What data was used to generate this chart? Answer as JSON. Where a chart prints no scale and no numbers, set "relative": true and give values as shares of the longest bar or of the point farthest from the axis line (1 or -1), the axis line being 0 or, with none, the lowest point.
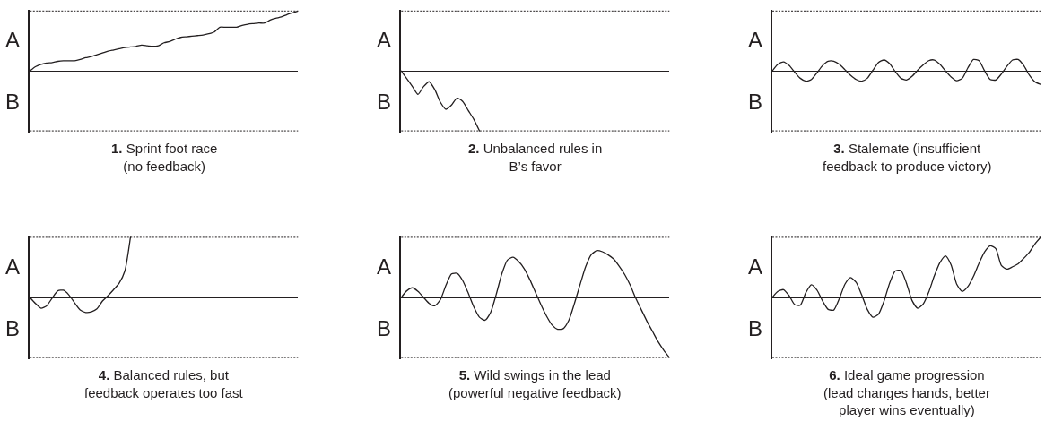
{
  "chart_data": [
    {
      "type": "line",
      "title": "1. Sprint foot race\n(no feedback)",
      "relative": true,
      "annotations": [
        "A",
        "B"
      ],
      "ref_lines": [
        {
          "axis": "y",
          "value": 1,
          "line_style": "dotted",
          "color": "#231f20"
        },
        {
          "axis": "y",
          "value": -1,
          "line_style": "dotted",
          "color": "#231f20"
        }
      ],
      "categories": [
        null,
        null,
        null,
        null,
        null,
        null,
        null,
        null,
        null,
        null,
        null,
        null,
        null,
        null,
        null,
        null,
        null,
        null,
        null,
        null,
        null,
        null,
        null,
        null,
        null,
        null,
        null,
        null,
        null,
        null,
        null,
        null,
        null,
        null,
        null,
        null,
        null,
        null,
        null,
        null,
        null,
        null,
        null,
        null,
        null,
        null,
        null,
        null,
        null
      ],
      "series": [
        {
          "color": "#231f20",
          "values": [
            0,
            0.07,
            0.11,
            0.13,
            0.14,
            0.16,
            0.17,
            0.17,
            0.17,
            0.19,
            0.22,
            0.24,
            0.27,
            0.3,
            0.33,
            0.35,
            0.37,
            0.39,
            0.4,
            0.41,
            0.43,
            0.42,
            0.41,
            0.42,
            0.47,
            0.49,
            0.53,
            0.56,
            0.57,
            0.58,
            0.59,
            0.6,
            0.62,
            0.65,
            0.73,
            0.73,
            0.73,
            0.73,
            0.76,
            0.78,
            0.79,
            0.8,
            0.8,
            0.85,
            0.88,
            0.9,
            0.94,
            0.97,
            1.0
          ]
        }
      ]
    },
    {
      "type": "line",
      "title": "2. Unbalanced rules in\nB’s favor",
      "relative": true,
      "annotations": [
        "A",
        "B"
      ],
      "ref_lines": [
        {
          "axis": "y",
          "value": 1,
          "line_style": "dotted",
          "color": "#231f20"
        },
        {
          "axis": "y",
          "value": -1,
          "line_style": "dotted",
          "color": "#231f20"
        }
      ],
      "categories": [
        null,
        null,
        null,
        null,
        null,
        null,
        null,
        null,
        null,
        null,
        null,
        null,
        null,
        null,
        null,
        null,
        null,
        null,
        null,
        null,
        null,
        null,
        null,
        null,
        null,
        null,
        null,
        null,
        null,
        null,
        null,
        null,
        null,
        null,
        null,
        null,
        null,
        null,
        null,
        null,
        null,
        null,
        null,
        null,
        null,
        null,
        null,
        null,
        null
      ],
      "series": [
        {
          "color": "#231f20",
          "values": [
            0,
            -0.13,
            -0.26,
            -0.39,
            -0.26,
            -0.18,
            -0.31,
            -0.52,
            -0.64,
            -0.57,
            -0.45,
            -0.51,
            -0.66,
            -0.81,
            -1.0,
            null,
            null,
            null,
            null,
            null,
            null,
            null,
            null,
            null,
            null,
            null,
            null,
            null,
            null,
            null,
            null,
            null,
            null,
            null,
            null,
            null,
            null,
            null,
            null,
            null,
            null,
            null,
            null,
            null,
            null,
            null,
            null,
            null,
            null
          ]
        }
      ]
    },
    {
      "type": "line",
      "title": "3. Stalemate (insufficient\nfeedback to produce victory)",
      "relative": true,
      "annotations": [
        "A",
        "B"
      ],
      "ref_lines": [
        {
          "axis": "y",
          "value": 4.5,
          "line_style": "dotted",
          "color": "#231f20"
        },
        {
          "axis": "y",
          "value": -4.5,
          "line_style": "dotted",
          "color": "#231f20"
        }
      ],
      "categories": [
        null,
        null,
        null,
        null,
        null,
        null,
        null,
        null,
        null,
        null,
        null,
        null,
        null,
        null,
        null,
        null,
        null,
        null,
        null,
        null,
        null,
        null,
        null,
        null,
        null,
        null,
        null,
        null,
        null,
        null,
        null,
        null,
        null,
        null,
        null,
        null,
        null,
        null,
        null,
        null,
        null,
        null,
        null,
        null,
        null,
        null,
        null,
        null,
        null
      ],
      "series": [
        {
          "color": "#231f20",
          "values": [
            0,
            0.5,
            0.68,
            0.41,
            -0.09,
            -0.55,
            -0.77,
            -0.64,
            -0.14,
            0.41,
            0.73,
            0.73,
            0.5,
            0.09,
            -0.32,
            -0.64,
            -0.77,
            -0.55,
            0.05,
            0.64,
            0.82,
            0.55,
            -0.05,
            -0.55,
            -0.68,
            -0.41,
            0.05,
            0.45,
            0.77,
            0.82,
            0.5,
            0.0,
            -0.45,
            -0.73,
            -0.55,
            0.23,
            0.86,
            0.77,
            0.0,
            -0.64,
            -0.68,
            -0.23,
            0.36,
            0.82,
            0.86,
            0.41,
            -0.32,
            -0.82,
            -1.0
          ]
        }
      ]
    },
    {
      "type": "line",
      "title": "4. Balanced rules, but\nfeedback operates too fast",
      "relative": true,
      "annotations": [
        "A",
        "B"
      ],
      "ref_lines": [
        {
          "axis": "y",
          "value": 1,
          "line_style": "dotted",
          "color": "#231f20"
        },
        {
          "axis": "y",
          "value": -1,
          "line_style": "dotted",
          "color": "#231f20"
        }
      ],
      "categories": [
        null,
        null,
        null,
        null,
        null,
        null,
        null,
        null,
        null,
        null,
        null,
        null,
        null,
        null,
        null,
        null,
        null,
        null,
        null,
        null,
        null,
        null,
        null,
        null,
        null,
        null,
        null,
        null,
        null,
        null,
        null,
        null,
        null,
        null,
        null,
        null,
        null,
        null,
        null,
        null,
        null,
        null,
        null,
        null,
        null,
        null,
        null,
        null,
        null
      ],
      "series": [
        {
          "color": "#231f20",
          "values": [
            0,
            -0.1,
            -0.18,
            -0.14,
            -0.01,
            0.11,
            0.12,
            0.04,
            -0.09,
            -0.21,
            -0.25,
            -0.24,
            -0.19,
            -0.06,
            0.03,
            0.13,
            0.24,
            0.44,
            1.0,
            null,
            null,
            null,
            null,
            null,
            null,
            null,
            null,
            null,
            null,
            null,
            null,
            null,
            null,
            null,
            null,
            null,
            null,
            null,
            null,
            null,
            null,
            null,
            null,
            null,
            null,
            null,
            null,
            null,
            null
          ]
        }
      ]
    },
    {
      "type": "line",
      "title": "5. Wild swings in the lead\n(powerful negative feedback)",
      "relative": true,
      "annotations": [
        "A",
        "B"
      ],
      "ref_lines": [
        {
          "axis": "y",
          "value": 1,
          "line_style": "dotted",
          "color": "#231f20"
        },
        {
          "axis": "y",
          "value": -1,
          "line_style": "dotted",
          "color": "#231f20"
        }
      ],
      "categories": [
        null,
        null,
        null,
        null,
        null,
        null,
        null,
        null,
        null,
        null,
        null,
        null,
        null,
        null,
        null,
        null,
        null,
        null,
        null,
        null,
        null,
        null,
        null,
        null,
        null,
        null,
        null,
        null,
        null,
        null,
        null,
        null,
        null,
        null,
        null,
        null,
        null,
        null,
        null,
        null,
        null,
        null,
        null,
        null,
        null,
        null,
        null,
        null,
        null
      ],
      "series": [
        {
          "color": "#231f20",
          "values": [
            0,
            0.11,
            0.16,
            0.1,
            0.0,
            -0.1,
            -0.14,
            -0.04,
            0.2,
            0.39,
            0.4,
            0.28,
            0.07,
            -0.16,
            -0.33,
            -0.38,
            -0.25,
            0.05,
            0.39,
            0.62,
            0.67,
            0.6,
            0.48,
            0.3,
            0.09,
            -0.12,
            -0.31,
            -0.46,
            -0.53,
            -0.52,
            -0.38,
            -0.1,
            0.21,
            0.51,
            0.71,
            0.78,
            0.76,
            0.71,
            0.64,
            0.52,
            0.38,
            0.2,
            -0.02,
            -0.21,
            -0.4,
            -0.57,
            -0.74,
            -0.88,
            -1.0
          ]
        }
      ]
    },
    {
      "type": "line",
      "title": "6. Ideal game progression\n(lead changes hands, better\nplayer wins eventually)",
      "relative": true,
      "annotations": [
        "A",
        "B"
      ],
      "ref_lines": [
        {
          "axis": "y",
          "value": 1,
          "line_style": "dotted",
          "color": "#231f20"
        },
        {
          "axis": "y",
          "value": -1,
          "line_style": "dotted",
          "color": "#231f20"
        }
      ],
      "categories": [
        null,
        null,
        null,
        null,
        null,
        null,
        null,
        null,
        null,
        null,
        null,
        null,
        null,
        null,
        null,
        null,
        null,
        null,
        null,
        null,
        null,
        null,
        null,
        null,
        null,
        null,
        null,
        null,
        null,
        null,
        null,
        null,
        null,
        null,
        null,
        null,
        null,
        null,
        null,
        null,
        null,
        null,
        null,
        null,
        null,
        null,
        null,
        null,
        null
      ],
      "series": [
        {
          "color": "#231f20",
          "values": [
            0,
            0.1,
            0.13,
            0.03,
            -0.12,
            -0.13,
            0.08,
            0.21,
            0.12,
            -0.06,
            -0.2,
            -0.21,
            -0.02,
            0.22,
            0.33,
            0.25,
            0.04,
            -0.2,
            -0.33,
            -0.28,
            -0.06,
            0.24,
            0.44,
            0.45,
            0.24,
            -0.05,
            -0.18,
            -0.11,
            0.09,
            0.36,
            0.58,
            0.69,
            0.54,
            0.22,
            0.1,
            0.18,
            0.35,
            0.57,
            0.76,
            0.86,
            0.81,
            0.53,
            0.47,
            0.51,
            0.56,
            0.65,
            0.75,
            0.89,
            1.0
          ]
        }
      ]
    }
  ]
}
